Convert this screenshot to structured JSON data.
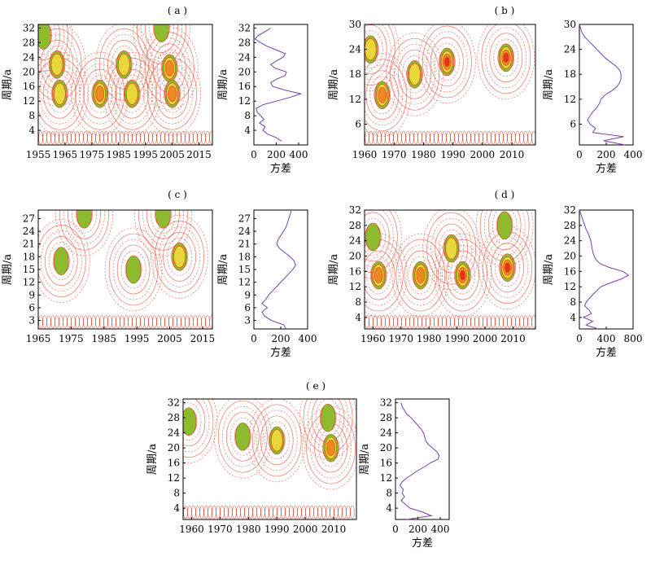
{
  "colors": {
    "contour_positive": "#e8341c",
    "fill_green": "#8dbb2e",
    "fill_yellow": "#e8d63a",
    "fill_orange": "#ec8a1f",
    "fill_red": "#e3321c",
    "fill_magenta": "#d8359a",
    "variance_line": "#7a3fa6"
  },
  "chart_data": [
    {
      "id": "a",
      "panel_label": "( a )",
      "type": "heatmap",
      "ylabel": "周期/a",
      "xlim": [
        1955,
        2020
      ],
      "xticks": [
        1955,
        1965,
        1975,
        1985,
        1995,
        2005,
        2015
      ],
      "ylim": [
        0,
        33
      ],
      "yticks": [
        4,
        8,
        12,
        16,
        20,
        24,
        28,
        32
      ],
      "peaks": [
        {
          "x": 1957,
          "y": 30,
          "level": 1
        },
        {
          "x": 1962,
          "y": 22,
          "level": 2
        },
        {
          "x": 1963,
          "y": 14,
          "level": 2
        },
        {
          "x": 1978,
          "y": 14,
          "level": 3
        },
        {
          "x": 1987,
          "y": 22,
          "level": 2
        },
        {
          "x": 1990,
          "y": 14,
          "level": 2
        },
        {
          "x": 2001,
          "y": 32,
          "level": 1
        },
        {
          "x": 2004,
          "y": 21,
          "level": 3
        },
        {
          "x": 2005,
          "y": 14,
          "level": 3
        }
      ],
      "variance": {
        "xlabel": "方差",
        "xlim": [
          0,
          480
        ],
        "xticks": [
          0,
          200,
          400
        ],
        "ylim": [
          0,
          33
        ],
        "yticks": [
          4,
          8,
          12,
          16,
          20,
          24,
          28,
          32
        ],
        "period": [
          1,
          2,
          3,
          4,
          5,
          6,
          7,
          8,
          9,
          10,
          11,
          12,
          13,
          14,
          15,
          16,
          17,
          18,
          19,
          20,
          21,
          22,
          23,
          24,
          25,
          26,
          27,
          28,
          29,
          30,
          31,
          32
        ],
        "values": [
          250,
          200,
          120,
          80,
          100,
          50,
          90,
          60,
          30,
          20,
          80,
          200,
          320,
          420,
          280,
          170,
          150,
          200,
          280,
          290,
          190,
          150,
          200,
          260,
          280,
          200,
          120,
          60,
          10,
          40,
          100,
          150
        ]
      }
    },
    {
      "id": "b",
      "panel_label": "( b )",
      "type": "heatmap",
      "ylabel": "周期/a",
      "xlim": [
        1960,
        2018
      ],
      "xticks": [
        1960,
        1970,
        1980,
        1990,
        2000,
        2010
      ],
      "ylim": [
        1,
        30
      ],
      "yticks": [
        6,
        12,
        18,
        24,
        30
      ],
      "peaks": [
        {
          "x": 1962,
          "y": 24,
          "level": 2
        },
        {
          "x": 1966,
          "y": 13,
          "level": 3
        },
        {
          "x": 1977,
          "y": 18,
          "level": 2
        },
        {
          "x": 1988,
          "y": 21,
          "level": 4
        },
        {
          "x": 2008,
          "y": 22,
          "level": 5
        }
      ],
      "variance": {
        "xlabel": "方差",
        "xlim": [
          0,
          400
        ],
        "xticks": [
          0,
          200,
          400
        ],
        "ylim": [
          1,
          30
        ],
        "yticks": [
          6,
          12,
          18,
          24,
          30
        ],
        "period": [
          1,
          2,
          3,
          4,
          5,
          6,
          7,
          8,
          9,
          10,
          11,
          12,
          13,
          14,
          15,
          16,
          17,
          18,
          19,
          20,
          21,
          22,
          23,
          24,
          25,
          26,
          27,
          28,
          29,
          30
        ],
        "values": [
          340,
          180,
          330,
          100,
          120,
          80,
          60,
          80,
          100,
          130,
          150,
          160,
          190,
          240,
          280,
          300,
          310,
          310,
          300,
          270,
          230,
          190,
          160,
          130,
          100,
          70,
          40,
          20,
          10,
          0
        ]
      }
    },
    {
      "id": "c",
      "panel_label": "( c )",
      "type": "heatmap",
      "ylabel": "周期/a",
      "xlim": [
        1965,
        2018
      ],
      "xticks": [
        1965,
        1975,
        1985,
        1995,
        2005,
        2015
      ],
      "ylim": [
        1,
        29
      ],
      "yticks": [
        3,
        6,
        9,
        12,
        15,
        18,
        21,
        24,
        27
      ],
      "peaks": [
        {
          "x": 1972,
          "y": 17,
          "level": 1
        },
        {
          "x": 1979,
          "y": 28,
          "level": 1
        },
        {
          "x": 1994,
          "y": 15,
          "level": 1
        },
        {
          "x": 2003,
          "y": 28,
          "level": 1
        },
        {
          "x": 2008,
          "y": 18,
          "level": 2
        }
      ],
      "variance": {
        "xlabel": "方差",
        "xlim": [
          0,
          400
        ],
        "xticks": [
          0,
          200,
          400
        ],
        "ylim": [
          1,
          29
        ],
        "yticks": [
          3,
          6,
          9,
          12,
          15,
          18,
          21,
          24,
          27
        ],
        "period": [
          1,
          2,
          3,
          4,
          5,
          6,
          7,
          8,
          9,
          10,
          11,
          12,
          13,
          14,
          15,
          16,
          17,
          18,
          19,
          20,
          21,
          22,
          23,
          24,
          25,
          26,
          27,
          28,
          29
        ],
        "values": [
          240,
          220,
          130,
          80,
          60,
          100,
          60,
          90,
          110,
          140,
          170,
          200,
          230,
          260,
          290,
          310,
          300,
          270,
          230,
          190,
          170,
          180,
          200,
          220,
          240,
          250,
          260,
          270,
          280
        ]
      }
    },
    {
      "id": "d",
      "panel_label": "( d )",
      "type": "heatmap",
      "ylabel": "周期/a",
      "xlim": [
        1957,
        2018
      ],
      "xticks": [
        1960,
        1970,
        1980,
        1990,
        2000,
        2010
      ],
      "ylim": [
        1,
        32
      ],
      "yticks": [
        4,
        8,
        12,
        16,
        20,
        24,
        28,
        32
      ],
      "peaks": [
        {
          "x": 1960,
          "y": 25,
          "level": 1
        },
        {
          "x": 1962,
          "y": 15,
          "level": 3
        },
        {
          "x": 1977,
          "y": 15,
          "level": 3
        },
        {
          "x": 1988,
          "y": 22,
          "level": 2
        },
        {
          "x": 1992,
          "y": 15,
          "level": 4
        },
        {
          "x": 2007,
          "y": 28,
          "level": 1
        },
        {
          "x": 2008,
          "y": 17,
          "level": 4
        }
      ],
      "variance": {
        "xlabel": "方差",
        "xlim": [
          0,
          800
        ],
        "xticks": [
          0,
          400,
          800
        ],
        "ylim": [
          1,
          32
        ],
        "yticks": [
          4,
          8,
          12,
          16,
          20,
          24,
          28,
          32
        ],
        "period": [
          1,
          2,
          3,
          4,
          5,
          6,
          7,
          8,
          9,
          10,
          11,
          12,
          13,
          14,
          15,
          16,
          17,
          18,
          19,
          20,
          21,
          22,
          23,
          24,
          25,
          26,
          27,
          28,
          29,
          30,
          31,
          32
        ],
        "values": [
          280,
          100,
          200,
          60,
          180,
          140,
          80,
          100,
          150,
          200,
          260,
          320,
          460,
          620,
          730,
          650,
          450,
          310,
          250,
          220,
          200,
          190,
          180,
          170,
          150,
          130,
          100,
          80,
          60,
          40,
          20,
          0
        ]
      }
    },
    {
      "id": "e",
      "panel_label": "( e )",
      "type": "heatmap",
      "ylabel": "周期/a",
      "xlim": [
        1957,
        2018
      ],
      "xticks": [
        1960,
        1970,
        1980,
        1990,
        2000,
        2010
      ],
      "ylim": [
        1,
        33
      ],
      "yticks": [
        4,
        8,
        12,
        16,
        20,
        24,
        28,
        32
      ],
      "peaks": [
        {
          "x": 1959,
          "y": 27,
          "level": 1
        },
        {
          "x": 1978,
          "y": 23,
          "level": 1
        },
        {
          "x": 1990,
          "y": 22,
          "level": 2
        },
        {
          "x": 2008,
          "y": 28,
          "level": 1
        },
        {
          "x": 2009,
          "y": 20,
          "level": 3
        }
      ],
      "variance": {
        "xlabel": "方差",
        "xlim": [
          0,
          480
        ],
        "xticks": [
          0,
          200,
          400
        ],
        "ylim": [
          1,
          33
        ],
        "yticks": [
          4,
          8,
          12,
          16,
          20,
          24,
          28,
          32
        ],
        "period": [
          1,
          2,
          3,
          4,
          5,
          6,
          7,
          8,
          9,
          10,
          11,
          12,
          13,
          14,
          15,
          16,
          17,
          18,
          19,
          20,
          21,
          22,
          23,
          24,
          25,
          26,
          27,
          28,
          29,
          30,
          31,
          32
        ],
        "values": [
          100,
          320,
          240,
          130,
          90,
          50,
          80,
          60,
          70,
          40,
          60,
          100,
          150,
          200,
          260,
          310,
          380,
          390,
          370,
          330,
          290,
          270,
          260,
          250,
          230,
          200,
          170,
          140,
          100,
          80,
          60,
          50
        ]
      }
    }
  ]
}
